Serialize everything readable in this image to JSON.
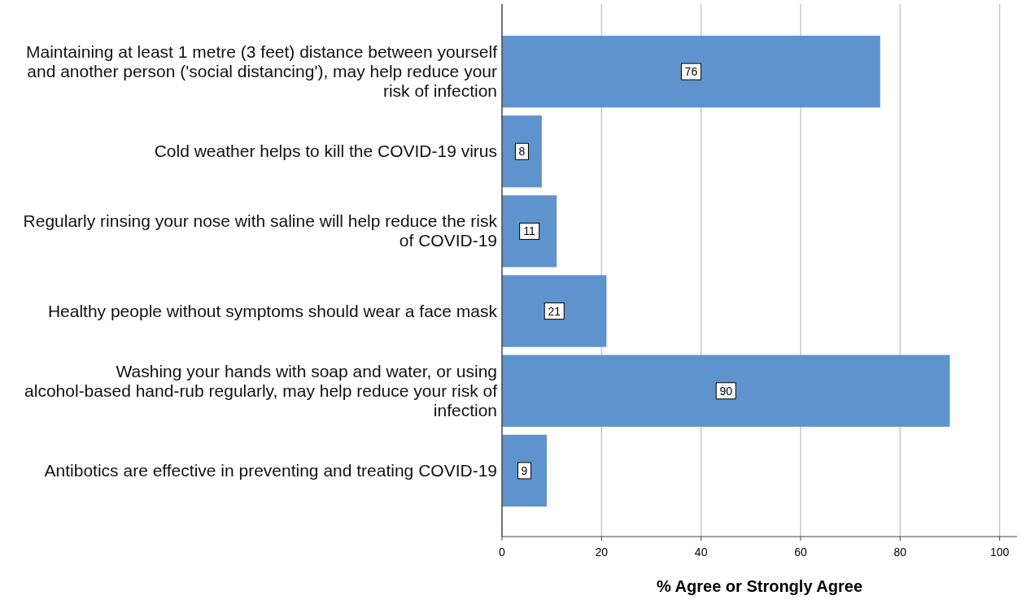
{
  "chart_data": {
    "type": "bar",
    "orientation": "horizontal",
    "xlabel": "% Agree or Strongly Agree",
    "categories": [
      "Maintaining at least 1 metre (3 feet) distance between yourself and another person ('social distancing'), may help reduce your risk of infection",
      "Cold weather helps to kill the COVID-19 virus",
      "Regularly rinsing your nose with saline will help reduce the risk of COVID-19",
      "Healthy people without symptoms should wear a face mask",
      "Washing your hands with soap and water, or using alcohol-based hand-rub regularly, may help reduce your risk of infection",
      "Antibotics are effective in preventing and treating COVID-19"
    ],
    "values": [
      76,
      8,
      11,
      21,
      90,
      9
    ],
    "color": "#5f93cd",
    "data_labels": true,
    "xlim": [
      0,
      103.5
    ],
    "xticks": [
      0,
      20,
      40,
      60,
      80,
      100
    ],
    "grid": "x"
  }
}
